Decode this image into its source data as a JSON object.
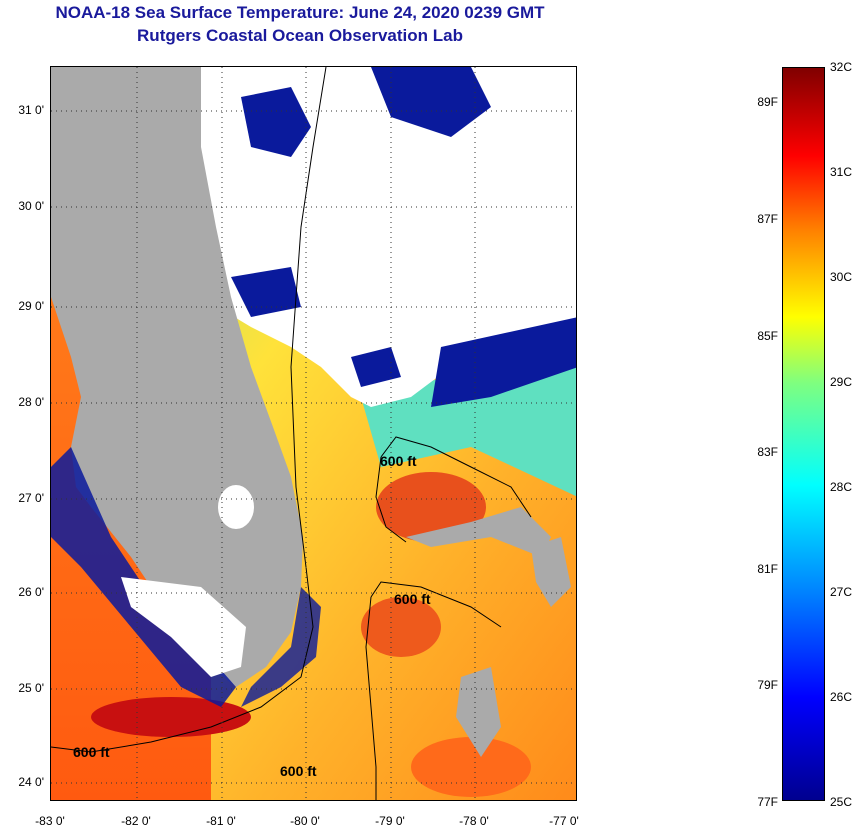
{
  "header": {
    "title": "NOAA-18 Sea Surface Temperature:  June 24, 2020 0239 GMT",
    "subtitle": "Rutgers Coastal Ocean Observation Lab"
  },
  "map": {
    "lon_range": [
      -83,
      -77
    ],
    "lat_range": [
      23.9,
      31.4
    ],
    "lon_labels": [
      "-83 0'",
      "-82 0'",
      "-81 0'",
      "-80 0'",
      "-79 0'",
      "-78 0'",
      "-77 0'"
    ],
    "lat_labels": [
      "31 0'",
      "30 0'",
      "29 0'",
      "28 0'",
      "27 0'",
      "26 0'",
      "25 0'",
      "24 0'"
    ],
    "contour_labels": [
      "600 ft",
      "600 ft",
      "600 ft",
      "600 ft"
    ],
    "colors": {
      "land": "#aaaaaa",
      "cloud": "#ffffff",
      "cold": "#00008f",
      "warm": "#ff3000"
    }
  },
  "colorbar": {
    "celsius": [
      "32C",
      "31C",
      "30C",
      "29C",
      "28C",
      "27C",
      "26C",
      "25C"
    ],
    "fahrenheit": [
      "89F",
      "87F",
      "85F",
      "83F",
      "81F",
      "79F",
      "77F"
    ]
  }
}
